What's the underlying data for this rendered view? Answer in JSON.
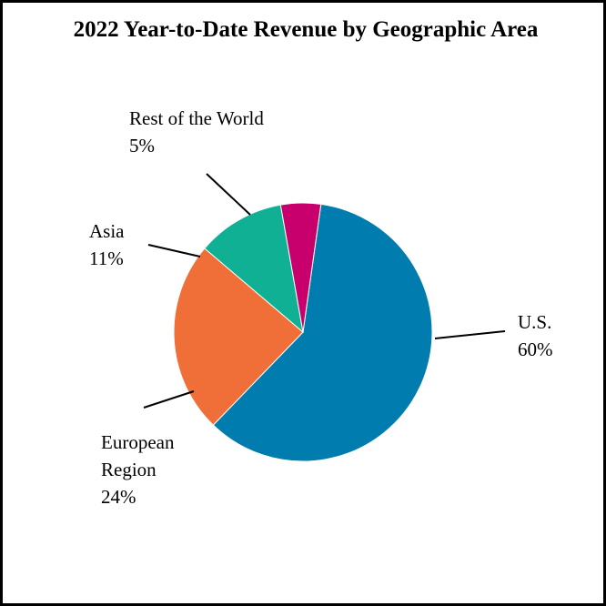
{
  "chart_data": {
    "type": "pie",
    "title": "2022 Year-to-Date Revenue by Geographic Area",
    "slices": [
      {
        "label": [
          "U.S."
        ],
        "value_label": "60%",
        "value": 60,
        "color": "#007CAE"
      },
      {
        "label": [
          "European",
          "Region"
        ],
        "value_label": "24%",
        "value": 24,
        "color": "#F06F38"
      },
      {
        "label": [
          "Asia"
        ],
        "value_label": "11%",
        "value": 11,
        "color": "#0FB094"
      },
      {
        "label": [
          "Rest of the World"
        ],
        "value_label": "5%",
        "value": 5,
        "color": "#C8006D"
      }
    ]
  }
}
